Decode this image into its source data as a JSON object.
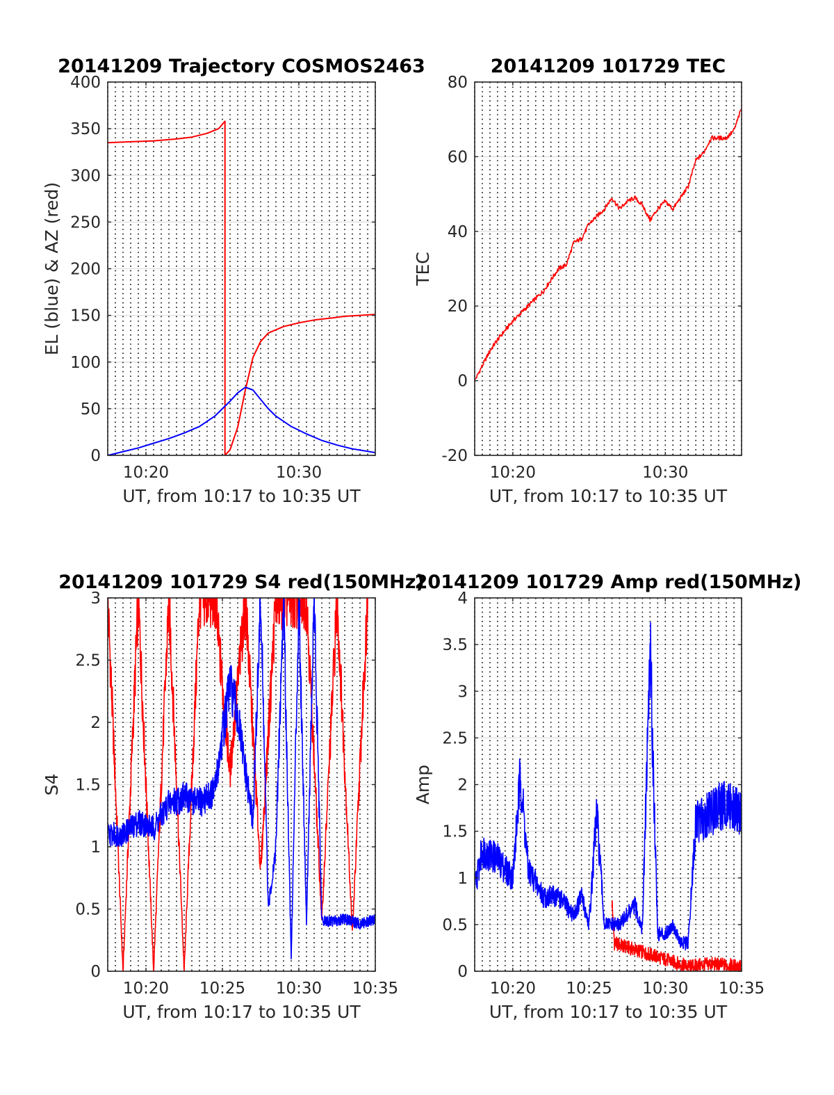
{
  "chart_data": [
    {
      "type": "line",
      "title": "20141209 Trajectory COSMOS2463",
      "xlabel": "UT, from 10:17 to 10:35 UT",
      "ylabel": "EL (blue) & AZ (red)",
      "xlim": [
        "10:17:30",
        "10:35:00"
      ],
      "ylim": [
        0,
        400
      ],
      "xticks": [
        "10:20",
        "10:30"
      ],
      "yticks": [
        "0",
        "50",
        "100",
        "150",
        "200",
        "250",
        "300",
        "350",
        "400"
      ],
      "grid": true,
      "legend": "none",
      "colors": {
        "el": "#0000ff",
        "az": "#ff0000"
      },
      "series": [
        {
          "color": "#ff0000",
          "x": [
            "10:17:30",
            "10:19:00",
            "10:20:30",
            "10:22:00",
            "10:23:00",
            "10:24:00",
            "10:24:45",
            "10:25:10",
            "10:25:10",
            "10:25:30",
            "10:26:00",
            "10:26:30",
            "10:27:00",
            "10:27:30",
            "10:28:00",
            "10:29:00",
            "10:30:00",
            "10:31:00",
            "10:32:00",
            "10:33:00",
            "10:34:00",
            "10:35:00"
          ],
          "values": [
            335,
            336,
            337,
            339,
            341,
            345,
            350,
            358,
            0,
            6,
            30,
            70,
            105,
            122,
            131,
            138,
            142,
            145,
            147,
            149,
            150,
            151
          ]
        },
        {
          "color": "#0000ff",
          "x": [
            "10:17:30",
            "10:18:30",
            "10:19:30",
            "10:20:30",
            "10:21:30",
            "10:22:30",
            "10:23:30",
            "10:24:30",
            "10:25:30",
            "10:26:00",
            "10:26:30",
            "10:27:00",
            "10:27:30",
            "10:28:00",
            "10:28:30",
            "10:29:30",
            "10:30:30",
            "10:31:30",
            "10:32:30",
            "10:33:30",
            "10:35:00"
          ],
          "values": [
            0,
            4,
            8,
            13,
            18,
            24,
            31,
            42,
            58,
            67,
            73,
            70,
            60,
            50,
            42,
            31,
            23,
            16,
            11,
            7,
            3
          ]
        }
      ]
    },
    {
      "type": "line",
      "title": "20141209 101729 TEC",
      "xlabel": "UT, from 10:17 to 10:35 UT",
      "ylabel": "TEC",
      "xlim": [
        "10:17:30",
        "10:35:00"
      ],
      "ylim": [
        -20,
        80
      ],
      "xticks": [
        "10:20",
        "10:30"
      ],
      "yticks": [
        "-20",
        "0",
        "20",
        "40",
        "60",
        "80"
      ],
      "grid": true,
      "legend": "none",
      "series": [
        {
          "color": "#ff0000",
          "x": [
            "10:17:30",
            "10:18:00",
            "10:18:30",
            "10:19:00",
            "10:20:00",
            "10:21:00",
            "10:22:00",
            "10:23:00",
            "10:23:30",
            "10:24:00",
            "10:24:30",
            "10:25:00",
            "10:26:00",
            "10:26:30",
            "10:27:00",
            "10:27:30",
            "10:28:00",
            "10:28:30",
            "10:29:00",
            "10:29:30",
            "10:30:00",
            "10:30:30",
            "10:31:00",
            "10:31:30",
            "10:32:00",
            "10:32:30",
            "10:33:00",
            "10:33:30",
            "10:34:00",
            "10:34:30",
            "10:35:00"
          ],
          "values": [
            0,
            4,
            8,
            11,
            16,
            20,
            24,
            30,
            31,
            37,
            38,
            42,
            46,
            49,
            46,
            48,
            49,
            47,
            43,
            46,
            48,
            46,
            49,
            52,
            59,
            61,
            65,
            65,
            65,
            67,
            73
          ]
        }
      ]
    },
    {
      "type": "line",
      "title": "20141209 101729 S4 red(150MHz)",
      "xlabel": "UT, from 10:17 to 10:35 UT",
      "ylabel": "S4",
      "xlim": [
        "10:17:30",
        "10:35:00"
      ],
      "ylim": [
        0,
        3
      ],
      "xticks": [
        "10:20",
        "10:25",
        "10:30",
        "10:35"
      ],
      "yticks": [
        "0",
        "0.5",
        "1",
        "1.5",
        "2",
        "2.5",
        "3"
      ],
      "grid": true,
      "legend": "none",
      "series": [
        {
          "color": "#ff0000",
          "x": [
            "10:17:30",
            "10:18:30",
            "10:19:30",
            "10:20:30",
            "10:21:30",
            "10:22:30",
            "10:23:30",
            "10:24:30",
            "10:25:30",
            "10:26:30",
            "10:27:30",
            "10:28:30",
            "10:29:30",
            "10:30:30",
            "10:31:30",
            "10:32:30",
            "10:33:30",
            "10:34:30"
          ],
          "values": [
            3,
            0,
            3,
            0,
            3,
            0,
            3,
            3,
            1.6,
            3,
            0.8,
            3,
            3,
            3,
            0.4,
            3,
            0.3,
            3
          ]
        },
        {
          "color": "#0000ff",
          "x": [
            "10:17:30",
            "10:18:30",
            "10:19:30",
            "10:20:30",
            "10:21:30",
            "10:22:30",
            "10:23:30",
            "10:24:30",
            "10:25:00",
            "10:25:30",
            "10:26:00",
            "10:26:30",
            "10:27:00",
            "10:27:30",
            "10:28:00",
            "10:28:30",
            "10:29:00",
            "10:29:30",
            "10:30:00",
            "10:30:30",
            "10:31:00",
            "10:31:30",
            "10:32:00",
            "10:33:00",
            "10:34:00",
            "10:35:00"
          ],
          "values": [
            1.1,
            1.1,
            1.2,
            1.15,
            1.35,
            1.4,
            1.35,
            1.45,
            1.9,
            2.3,
            2.05,
            1.6,
            1.2,
            3,
            0.5,
            1.0,
            3,
            0.1,
            3,
            0.4,
            3,
            0.4,
            0.4,
            0.42,
            0.38,
            0.42
          ]
        }
      ]
    },
    {
      "type": "line",
      "title": "20141209 101729 Amp red(150MHz)",
      "xlabel": "UT, from 10:17 to 10:35 UT",
      "ylabel": "Amp",
      "xlim": [
        "10:17:30",
        "10:35:00"
      ],
      "ylim": [
        0,
        4
      ],
      "xticks": [
        "10:20",
        "10:25",
        "10:30",
        "10:35"
      ],
      "yticks": [
        "0",
        "0.5",
        "1",
        "1.5",
        "2",
        "2.5",
        "3",
        "3.5",
        "4"
      ],
      "grid": true,
      "legend": "none",
      "series": [
        {
          "color": "#ff0000",
          "x": [
            "10:26:30",
            "10:26:40",
            "10:31:30",
            "10:33:00",
            "10:35:00"
          ],
          "values": [
            0.75,
            0.3,
            0.05,
            0.08,
            0.05
          ]
        },
        {
          "color": "#0000ff",
          "x": [
            "10:17:30",
            "10:18:00",
            "10:19:00",
            "10:20:00",
            "10:20:30",
            "10:21:00",
            "10:22:00",
            "10:23:00",
            "10:24:00",
            "10:24:30",
            "10:25:00",
            "10:25:30",
            "10:26:00",
            "10:27:00",
            "10:28:00",
            "10:28:30",
            "10:29:00",
            "10:29:30",
            "10:30:00",
            "10:30:30",
            "10:31:00",
            "10:31:30",
            "10:32:00",
            "10:33:00",
            "10:34:00",
            "10:35:00"
          ],
          "values": [
            0.9,
            1.3,
            1.2,
            1.0,
            2.1,
            1.1,
            0.8,
            0.8,
            0.6,
            0.8,
            0.5,
            1.7,
            0.5,
            0.5,
            0.7,
            0.45,
            3.5,
            0.4,
            0.4,
            0.5,
            0.3,
            0.3,
            1.6,
            1.7,
            1.8,
            1.7
          ]
        }
      ]
    }
  ]
}
